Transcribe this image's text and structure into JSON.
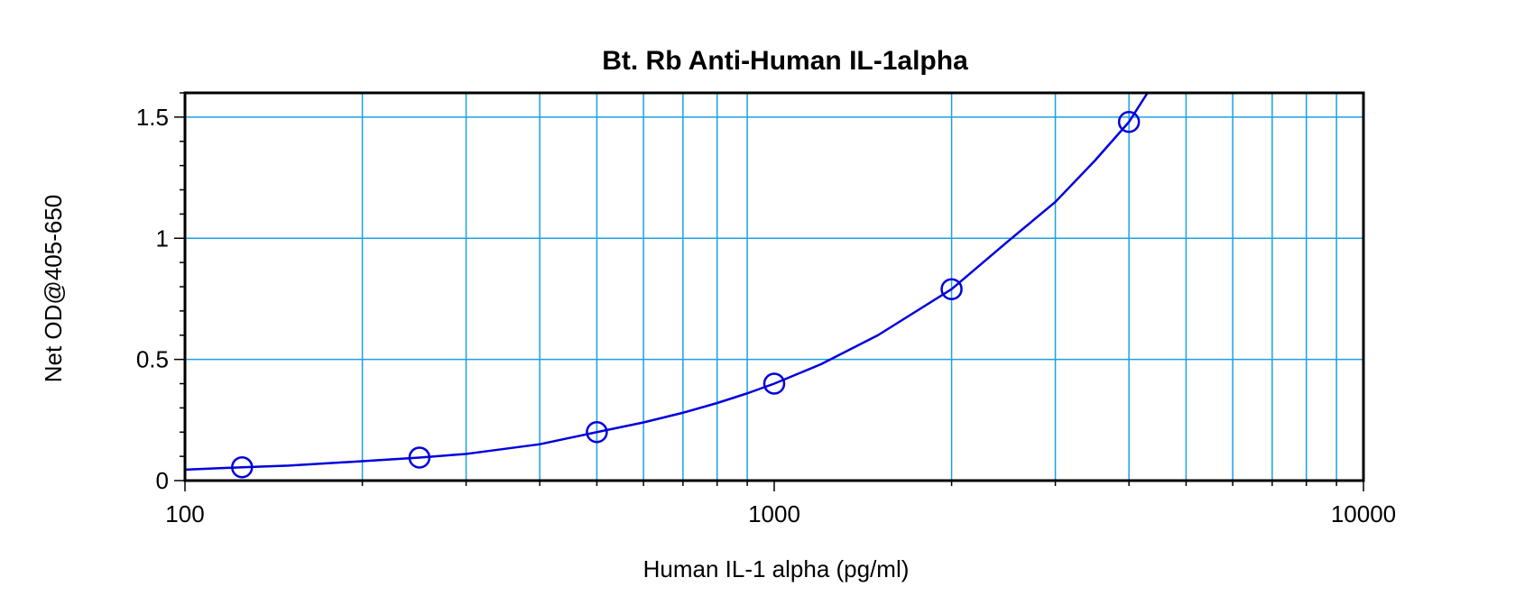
{
  "chart_data": {
    "type": "scatter",
    "title": "Bt. Rb Anti-Human IL-1alpha",
    "xlabel": "Human IL-1 alpha (pg/ml)",
    "ylabel": "Net OD@405-650",
    "x_scale": "log",
    "xlim": [
      100,
      10000
    ],
    "ylim": [
      0,
      1.6
    ],
    "x_ticks": [
      100,
      1000,
      10000
    ],
    "x_tick_labels": [
      "100",
      "1000",
      "10000"
    ],
    "y_ticks": [
      0,
      0.5,
      1,
      1.5
    ],
    "y_tick_labels": [
      "0",
      "0.5",
      "1",
      "1.5"
    ],
    "grid": true,
    "legend": "none",
    "series": [
      {
        "points": [
          {
            "x": 125,
            "y": 0.055
          },
          {
            "x": 250,
            "y": 0.095
          },
          {
            "x": 500,
            "y": 0.2
          },
          {
            "x": 1000,
            "y": 0.4
          },
          {
            "x": 2000,
            "y": 0.79
          },
          {
            "x": 4000,
            "y": 1.48
          }
        ],
        "fit_curve": {
          "x": [
            100,
            125,
            150,
            200,
            250,
            300,
            400,
            500,
            600,
            700,
            800,
            900,
            1000,
            1200,
            1500,
            2000,
            2500,
            3000,
            3500,
            4000,
            4300
          ],
          "y": [
            0.045,
            0.055,
            0.062,
            0.08,
            0.095,
            0.11,
            0.15,
            0.2,
            0.24,
            0.28,
            0.32,
            0.36,
            0.4,
            0.48,
            0.6,
            0.79,
            0.99,
            1.15,
            1.32,
            1.48,
            1.6
          ]
        }
      }
    ],
    "colors": {
      "series": "#0000dd",
      "grid": "#1ba1e2",
      "axes": "#000000"
    }
  }
}
